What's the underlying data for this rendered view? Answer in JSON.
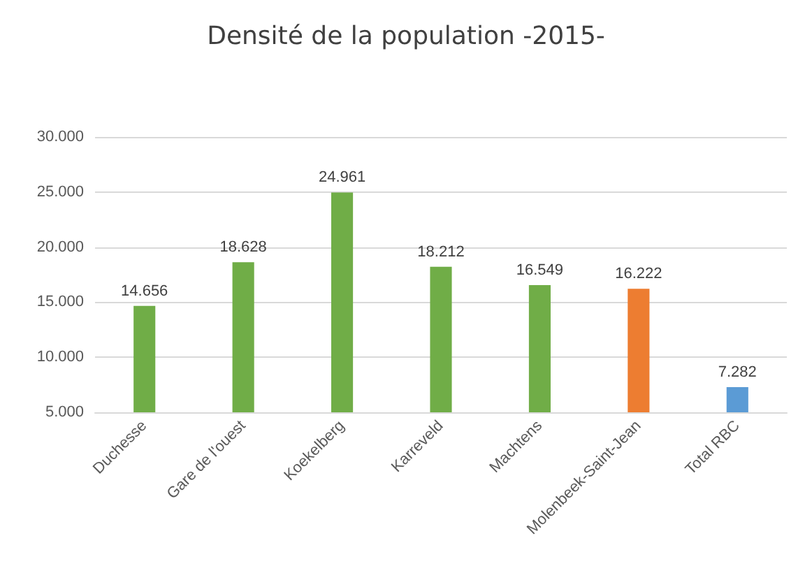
{
  "chart_data": {
    "type": "bar",
    "title": "Densité de la population -2015-",
    "categories": [
      "Duchesse",
      "Gare de l'ouest",
      "Koekelberg",
      "Karreveld",
      "Machtens",
      "Molenbeek-Saint-Jean",
      "Total RBC"
    ],
    "values": [
      14656,
      18628,
      24961,
      18212,
      16549,
      16222,
      7282
    ],
    "colors": [
      "#70ad47",
      "#70ad47",
      "#70ad47",
      "#70ad47",
      "#70ad47",
      "#ed7d31",
      "#5b9bd5"
    ],
    "value_labels": [
      "14.656",
      "18.628",
      "24.961",
      "18.212",
      "16.549",
      "16.222",
      "7.282"
    ],
    "ylim": [
      5000,
      30000
    ],
    "yticks": [
      {
        "value": 5000,
        "label": "5.000"
      },
      {
        "value": 10000,
        "label": "10.000"
      },
      {
        "value": 15000,
        "label": "15.000"
      },
      {
        "value": 20000,
        "label": "20.000"
      },
      {
        "value": 25000,
        "label": "25.000"
      },
      {
        "value": 30000,
        "label": "30.000"
      }
    ],
    "grid": "y"
  }
}
